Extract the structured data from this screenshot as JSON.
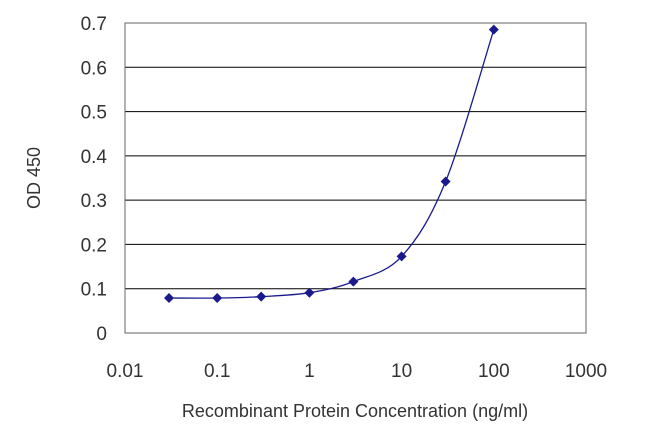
{
  "chart_data": {
    "type": "scatter",
    "title": "",
    "xlabel": "Recombinant Protein Concentration (ng/ml)",
    "ylabel": "OD 450",
    "xscale": "log",
    "xlim": [
      0.01,
      1000
    ],
    "ylim": [
      0,
      0.7
    ],
    "x_ticks": [
      "0.01",
      "0.1",
      "1",
      "10",
      "100",
      "1000"
    ],
    "y_ticks": [
      "0",
      "0.1",
      "0.2",
      "0.3",
      "0.4",
      "0.5",
      "0.6",
      "0.7"
    ],
    "grid": "horizontal",
    "legend": "none",
    "series": [
      {
        "x": [
          0.03,
          0.1,
          0.3,
          1,
          3,
          10,
          30,
          100
        ],
        "y": [
          0.079,
          0.079,
          0.082,
          0.091,
          0.116,
          0.173,
          0.342,
          0.685
        ],
        "fit_curve": true
      }
    ]
  },
  "colors": {
    "series": "#1a1a8c",
    "grid": "#000000",
    "axes": "#555555"
  }
}
